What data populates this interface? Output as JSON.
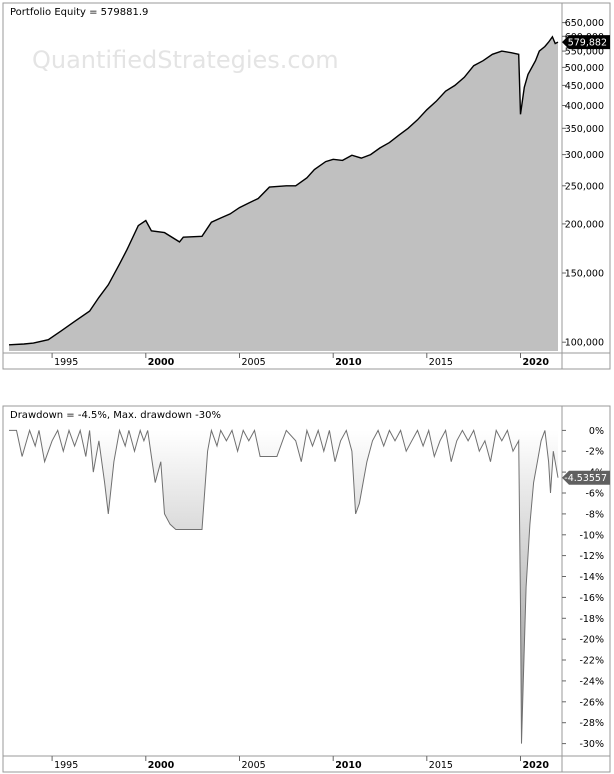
{
  "watermark": "QuantifiedStrategies.com",
  "chart_data": [
    {
      "type": "area",
      "title": "Portfolio Equity = 579881.9",
      "y_scale": "log",
      "ylim": [
        95000,
        660000
      ],
      "xlim": [
        1992.7,
        2022.0
      ],
      "y_ticks": [
        {
          "value": 650000,
          "label": "650,000"
        },
        {
          "value": 600000,
          "label": "600,000"
        },
        {
          "value": 550000,
          "label": "550,000"
        },
        {
          "value": 500000,
          "label": "500,000"
        },
        {
          "value": 450000,
          "label": "450,000"
        },
        {
          "value": 400000,
          "label": "400,000"
        },
        {
          "value": 350000,
          "label": "350,000"
        },
        {
          "value": 300000,
          "label": "300,000"
        },
        {
          "value": 250000,
          "label": "250,000"
        },
        {
          "value": 200000,
          "label": "200,000"
        },
        {
          "value": 150000,
          "label": "150,000"
        },
        {
          "value": 100000,
          "label": "100,000"
        }
      ],
      "x_ticks": [
        {
          "value": 1995,
          "label": "1995",
          "bold": false
        },
        {
          "value": 2000,
          "label": "2000",
          "bold": true
        },
        {
          "value": 2005,
          "label": "2005",
          "bold": false
        },
        {
          "value": 2010,
          "label": "2010",
          "bold": true
        },
        {
          "value": 2015,
          "label": "2015",
          "bold": false
        },
        {
          "value": 2020,
          "label": "2020",
          "bold": true
        }
      ],
      "last_value_label": "579,882",
      "last_value": 579882,
      "series": [
        {
          "x": [
            1992.7,
            1993.5,
            1994.0,
            1994.8,
            1995.5,
            1996.2,
            1997.0,
            1997.5,
            1998.0,
            1998.6,
            1999.0,
            1999.6,
            2000.0,
            2000.3,
            2001.0,
            2001.8,
            2002.0,
            2003.0,
            2003.5,
            2004.0,
            2004.5,
            2005.0,
            2005.5,
            2006.0,
            2006.6,
            2007.5,
            2008.0,
            2008.6,
            2009.0,
            2009.6,
            2010.0,
            2010.5,
            2011.0,
            2011.5,
            2012.0,
            2012.5,
            2013.0,
            2013.5,
            2014.0,
            2014.5,
            2015.0,
            2015.5,
            2016.0,
            2016.5,
            2017.0,
            2017.5,
            2018.0,
            2018.5,
            2019.0,
            2019.5,
            2019.9,
            2020.0,
            2020.2,
            2020.4,
            2020.8,
            2021.0,
            2021.3,
            2021.5,
            2021.7,
            2021.85,
            2022.0
          ],
          "y": [
            98500,
            99000,
            99500,
            101500,
            107000,
            113000,
            120000,
            130000,
            140000,
            158000,
            172000,
            198000,
            204000,
            192000,
            190000,
            180000,
            185000,
            186000,
            202000,
            207000,
            212000,
            220000,
            226000,
            232000,
            248000,
            250000,
            250000,
            262000,
            275000,
            288000,
            292000,
            290000,
            299000,
            294000,
            300000,
            312000,
            322000,
            336000,
            350000,
            368000,
            390000,
            410000,
            435000,
            450000,
            472000,
            505000,
            520000,
            540000,
            550000,
            545000,
            540000,
            380000,
            445000,
            480000,
            520000,
            550000,
            565000,
            580000,
            598000,
            575000,
            579882
          ]
        }
      ]
    },
    {
      "type": "area",
      "title": "Drawdown = -4.5%, Max. drawdown -30%",
      "ylim": [
        -31,
        0.8
      ],
      "xlim": [
        1992.7,
        2022.0
      ],
      "y_ticks": [
        {
          "value": 0,
          "label": "0%"
        },
        {
          "value": -2,
          "label": "-2%"
        },
        {
          "value": -4,
          "label": "-4%"
        },
        {
          "value": -6,
          "label": "-6%"
        },
        {
          "value": -8,
          "label": "-8%"
        },
        {
          "value": -10,
          "label": "-10%"
        },
        {
          "value": -12,
          "label": "-12%"
        },
        {
          "value": -14,
          "label": "-14%"
        },
        {
          "value": -16,
          "label": "-16%"
        },
        {
          "value": -18,
          "label": "-18%"
        },
        {
          "value": -20,
          "label": "-20%"
        },
        {
          "value": -22,
          "label": "-22%"
        },
        {
          "value": -24,
          "label": "-24%"
        },
        {
          "value": -26,
          "label": "-26%"
        },
        {
          "value": -28,
          "label": "-28%"
        },
        {
          "value": -30,
          "label": "-30%"
        }
      ],
      "x_ticks": [
        {
          "value": 1995,
          "label": "1995",
          "bold": false
        },
        {
          "value": 2000,
          "label": "2000",
          "bold": true
        },
        {
          "value": 2005,
          "label": "2005",
          "bold": false
        },
        {
          "value": 2010,
          "label": "2010",
          "bold": true
        },
        {
          "value": 2015,
          "label": "2015",
          "bold": false
        },
        {
          "value": 2020,
          "label": "2020",
          "bold": true
        }
      ],
      "last_value_label": "-4.53557",
      "last_value": -4.53557,
      "series": [
        {
          "x": [
            1992.7,
            1993.1,
            1993.4,
            1993.8,
            1994.1,
            1994.3,
            1994.6,
            1995.0,
            1995.3,
            1995.6,
            1995.9,
            1996.2,
            1996.5,
            1996.8,
            1997.0,
            1997.2,
            1997.5,
            1997.8,
            1998.0,
            1998.3,
            1998.6,
            1998.9,
            1999.1,
            1999.4,
            1999.7,
            1999.9,
            2000.1,
            2000.3,
            2000.5,
            2000.8,
            2001.0,
            2001.3,
            2001.6,
            2001.8,
            2002.0,
            2002.5,
            2003.0,
            2003.3,
            2003.5,
            2003.8,
            2004.0,
            2004.3,
            2004.6,
            2004.9,
            2005.2,
            2005.5,
            2005.8,
            2006.1,
            2006.4,
            2006.7,
            2007.0,
            2007.5,
            2008.0,
            2008.3,
            2008.6,
            2008.9,
            2009.2,
            2009.5,
            2009.8,
            2010.1,
            2010.4,
            2010.7,
            2011.0,
            2011.2,
            2011.4,
            2011.6,
            2011.8,
            2012.1,
            2012.4,
            2012.7,
            2013.0,
            2013.3,
            2013.6,
            2013.9,
            2014.2,
            2014.5,
            2014.8,
            2015.1,
            2015.4,
            2015.7,
            2016.0,
            2016.3,
            2016.6,
            2016.9,
            2017.2,
            2017.5,
            2017.8,
            2018.1,
            2018.4,
            2018.7,
            2019.0,
            2019.3,
            2019.6,
            2019.9,
            2020.0,
            2020.05,
            2020.15,
            2020.3,
            2020.5,
            2020.7,
            2020.9,
            2021.1,
            2021.3,
            2021.5,
            2021.6,
            2021.75,
            2022.0
          ],
          "y": [
            0,
            0,
            -2.5,
            0,
            -1.5,
            0,
            -3,
            -1,
            0,
            -2,
            0,
            -1.5,
            0,
            -2.5,
            0,
            -4,
            -1,
            -5,
            -8,
            -3,
            0,
            -1.5,
            0,
            -2,
            0,
            -1,
            0,
            -2.5,
            -5,
            -3,
            -8,
            -9,
            -9.5,
            -9.5,
            -9.5,
            -9.5,
            -9.5,
            -2,
            0,
            -1.5,
            0,
            -1,
            0,
            -2,
            0,
            -1,
            0,
            -2.5,
            -2.5,
            -2.5,
            -2.5,
            0,
            -1,
            -3,
            0,
            -1.5,
            0,
            -2,
            0,
            -3,
            -1,
            0,
            -2,
            -8,
            -7,
            -5,
            -3,
            -1,
            0,
            -1.5,
            0,
            -1,
            0,
            -2,
            -1,
            0,
            -1.5,
            0,
            -2.5,
            -1,
            0,
            -3,
            -1,
            0,
            -1,
            0,
            -2,
            -1,
            -3,
            0,
            -1,
            0,
            -2,
            -1,
            -17,
            -30,
            -24,
            -15,
            -9,
            -5,
            -3,
            -1,
            0,
            -3,
            -6,
            -2,
            -4.53557
          ]
        }
      ]
    }
  ]
}
